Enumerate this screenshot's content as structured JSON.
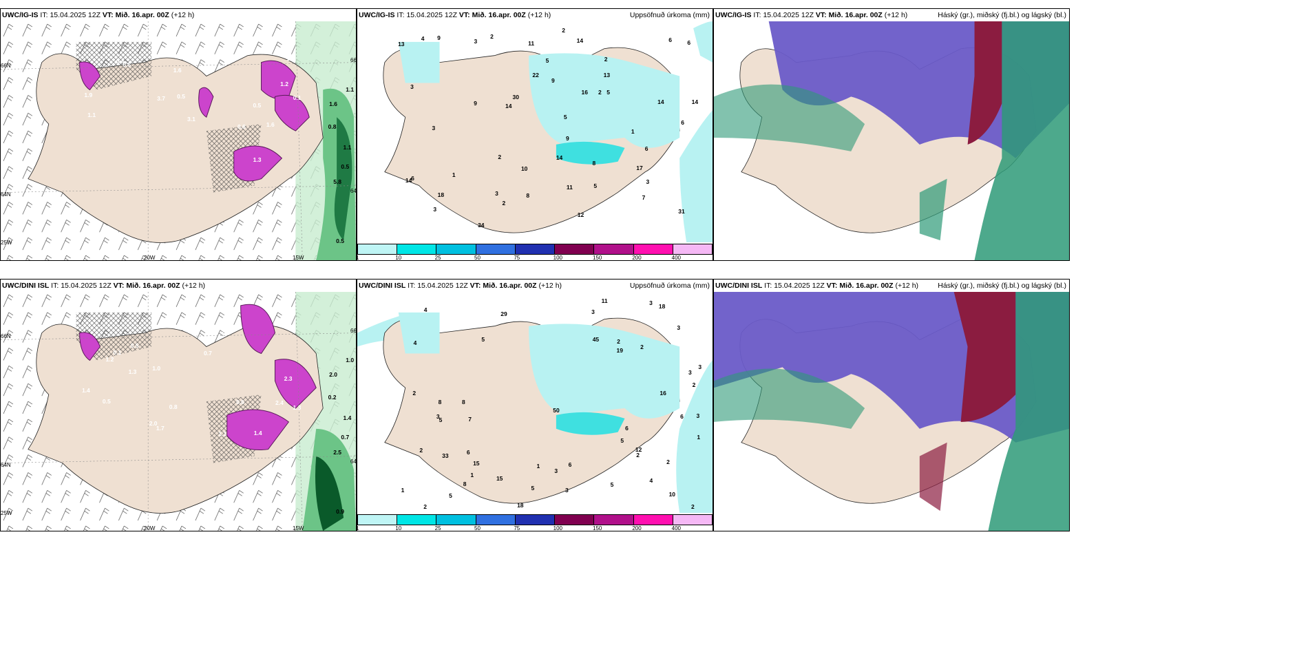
{
  "run": {
    "init": "15.04.2025 12Z",
    "valid_label": "VT:",
    "valid": "Mið. 16.apr. 00Z",
    "lead": "(+12 h)",
    "it_label": "IT:"
  },
  "models": {
    "top": "UWC/IG-IS",
    "bottom": "UWC/DINI ISL"
  },
  "titles": {
    "precip": "Uppsöfnuð úrkoma (mm)",
    "cloud": "Háský (gr.), miðský (fj.bl.) og lágský (bl.)"
  },
  "axes": {
    "lat_top": "66N",
    "lat_mid": "64N",
    "lat_bot": "25W",
    "lon_left": "20W",
    "lon_right": "15W",
    "lat_right_top": "66N",
    "lat_right_mid": "64N"
  },
  "scale": {
    "labels": [
      "1",
      "10",
      "25",
      "50",
      "75",
      "100",
      "150",
      "200",
      "400"
    ],
    "colors": [
      "#bff5f5",
      "#00e6e6",
      "#00c0e0",
      "#3070e0",
      "#2030b0",
      "#800050",
      "#b0108a",
      "#ff10b0",
      "#f5b8f5"
    ]
  },
  "colors": {
    "land": "#efe0d2",
    "sea": "#ffffff",
    "precip_light": "#b8f2f2",
    "precip_mid": "#3fe0e0",
    "snow": "#cc44cc",
    "green1": "#9be0a8",
    "green2": "#2e9e58",
    "green3": "#0a5a2a",
    "high_cloud": "#6a5bc8",
    "mid_cloud": "#2e9a78",
    "low_cloud": "#8b1c40"
  },
  "top_snow_labels": [
    "0.1",
    "1.6",
    "3.1",
    "1.6",
    "0.5",
    "1.1",
    "3.7",
    "0.4",
    "1.2",
    "1.1",
    "1.9",
    "0.6",
    "1.3",
    "0.6",
    "0.5"
  ],
  "top_green_labels": [
    "0.5",
    "1.1",
    "0.5",
    "0.8",
    "1.1",
    "5.8",
    "1.6"
  ],
  "top_precip_labels": [
    "2",
    "3",
    "2",
    "8",
    "2",
    "3",
    "6",
    "8",
    "11",
    "5",
    "6",
    "3",
    "14",
    "6",
    "14",
    "10",
    "9",
    "6",
    "2",
    "9",
    "9",
    "13",
    "13",
    "31",
    "7",
    "30",
    "34",
    "14",
    "14",
    "12",
    "5",
    "3",
    "3",
    "3",
    "9",
    "11",
    "5",
    "14",
    "14",
    "16",
    "18",
    "5",
    "2",
    "17",
    "1",
    "1",
    "2",
    "6",
    "22",
    "4"
  ],
  "bottom_snow_labels": [
    "1.4",
    "0.5",
    "1.7",
    "1.3",
    "2.8",
    "2.0",
    "0.8",
    "2.3",
    "0.1",
    "0.7",
    "0.5",
    "1.3",
    "0.6",
    "1.4",
    "2.4",
    "1.2",
    "1.1",
    "1.0"
  ],
  "bottom_green_labels": [
    "0.7",
    "1.0",
    "0.9",
    "0.2",
    "1.4",
    "2.5",
    "2.0"
  ],
  "bottom_precip_labels": [
    "1",
    "1",
    "3",
    "4",
    "2",
    "8",
    "2",
    "5",
    "3",
    "3",
    "6",
    "5",
    "8",
    "4",
    "8",
    "3",
    "11",
    "18",
    "45",
    "3",
    "5",
    "3",
    "7",
    "2",
    "6",
    "3",
    "1",
    "6",
    "2",
    "33",
    "5",
    "15",
    "19",
    "12",
    "10",
    "2",
    "2",
    "3",
    "50",
    "16",
    "29",
    "18",
    "6",
    "2",
    "2",
    "5",
    "4",
    "2",
    "3",
    "5",
    "1",
    "15"
  ]
}
